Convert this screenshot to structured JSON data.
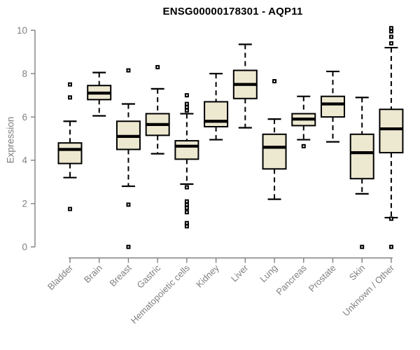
{
  "figure": {
    "title": "ENSG00000178301 - AQP11",
    "y_axis_label": "Expression"
  },
  "chart_data": {
    "type": "box",
    "title": "ENSG00000178301 - AQP11",
    "xlabel": "",
    "ylabel": "Expression",
    "ylim": [
      0,
      10
    ],
    "yticks": [
      0,
      2,
      4,
      6,
      8,
      10
    ],
    "grid": false,
    "legend": null,
    "box_fill": "#EDE8D0",
    "line_color": "#000000",
    "axis_color": "#808080",
    "categories": [
      "Bladder",
      "Brain",
      "Breast",
      "Gastric",
      "Hematopoietic cells",
      "Kidney",
      "Liver",
      "Lung",
      "Pancreas",
      "Prostate",
      "Skin",
      "Unknown / Other"
    ],
    "boxes": [
      {
        "category": "Bladder",
        "whisker_low": 3.2,
        "q1": 3.85,
        "median": 4.5,
        "q3": 4.8,
        "whisker_high": 5.8,
        "outliers": [
          7.5,
          6.9,
          1.75
        ]
      },
      {
        "category": "Brain",
        "whisker_low": 6.05,
        "q1": 6.8,
        "median": 7.1,
        "q3": 7.45,
        "whisker_high": 8.05,
        "outliers": []
      },
      {
        "category": "Breast",
        "whisker_low": 2.8,
        "q1": 4.5,
        "median": 5.1,
        "q3": 5.8,
        "whisker_high": 6.6,
        "outliers": [
          8.15,
          1.95,
          0
        ]
      },
      {
        "category": "Gastric",
        "whisker_low": 4.3,
        "q1": 5.15,
        "median": 5.65,
        "q3": 6.15,
        "whisker_high": 7.3,
        "outliers": [
          8.3
        ]
      },
      {
        "category": "Hematopoietic cells",
        "whisker_low": 2.9,
        "q1": 4.05,
        "median": 4.65,
        "q3": 4.9,
        "whisker_high": 6.15,
        "outliers": [
          7.0,
          6.6,
          6.45,
          6.3,
          2.75,
          2.1,
          1.95,
          1.8,
          1.6,
          1.1,
          0.95
        ]
      },
      {
        "category": "Kidney",
        "whisker_low": 4.95,
        "q1": 5.55,
        "median": 5.8,
        "q3": 6.7,
        "whisker_high": 8.0,
        "outliers": []
      },
      {
        "category": "Liver",
        "whisker_low": 5.5,
        "q1": 6.85,
        "median": 7.5,
        "q3": 8.15,
        "whisker_high": 9.35,
        "outliers": []
      },
      {
        "category": "Lung",
        "whisker_low": 2.2,
        "q1": 3.6,
        "median": 4.6,
        "q3": 5.2,
        "whisker_high": 5.9,
        "outliers": [
          7.65
        ]
      },
      {
        "category": "Pancreas",
        "whisker_low": 4.95,
        "q1": 5.6,
        "median": 5.9,
        "q3": 6.15,
        "whisker_high": 6.95,
        "outliers": [
          4.65
        ]
      },
      {
        "category": "Prostate",
        "whisker_low": 4.85,
        "q1": 6.0,
        "median": 6.6,
        "q3": 6.95,
        "whisker_high": 8.1,
        "outliers": []
      },
      {
        "category": "Skin",
        "whisker_low": 2.45,
        "q1": 3.15,
        "median": 4.35,
        "q3": 5.2,
        "whisker_high": 6.9,
        "outliers": [
          0
        ]
      },
      {
        "category": "Unknown / Other",
        "whisker_low": 1.35,
        "q1": 4.35,
        "median": 5.45,
        "q3": 6.35,
        "whisker_high": 9.2,
        "outliers": [
          10.1,
          9.95,
          9.7,
          9.4,
          1.3,
          0
        ]
      }
    ]
  }
}
